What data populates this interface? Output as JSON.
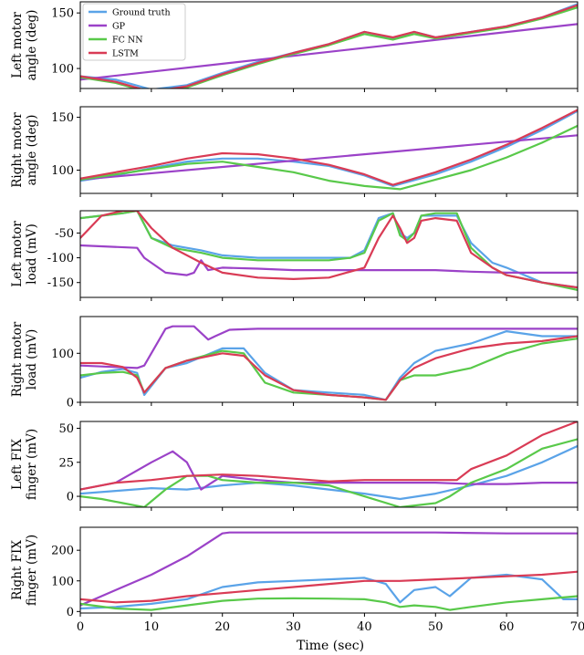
{
  "chart_data": [
    {
      "type": "line",
      "ylabel": [
        "Left motor",
        "angle (deg)"
      ],
      "ylim": [
        82,
        160
      ],
      "yticks": [
        100,
        150
      ],
      "series": [
        {
          "name": "Ground truth",
          "x": [
            0,
            5,
            10,
            15,
            20,
            25,
            30,
            35,
            40,
            44,
            47,
            50,
            55,
            60,
            65,
            70
          ],
          "y": [
            93,
            90,
            81,
            85,
            96,
            106,
            114,
            122,
            133,
            127,
            133,
            128,
            133,
            138,
            146,
            158
          ]
        },
        {
          "name": "GP",
          "x": [
            0,
            70
          ],
          "y": [
            90,
            140
          ]
        },
        {
          "name": "FC NN",
          "x": [
            0,
            5,
            10,
            15,
            20,
            25,
            30,
            35,
            40,
            44,
            47,
            50,
            55,
            60,
            65,
            70
          ],
          "y": [
            92,
            87,
            78,
            83,
            94,
            104,
            113,
            121,
            131,
            126,
            131,
            127,
            132,
            137,
            145,
            155
          ]
        },
        {
          "name": "LSTM",
          "x": [
            0,
            5,
            10,
            15,
            20,
            25,
            30,
            35,
            40,
            44,
            47,
            50,
            55,
            60,
            65,
            70
          ],
          "y": [
            93,
            88,
            79,
            84,
            95,
            105,
            114,
            122,
            133,
            128,
            133,
            128,
            133,
            138,
            146,
            157
          ]
        }
      ]
    },
    {
      "type": "line",
      "ylabel": [
        "Right motor",
        "angle (deg)"
      ],
      "ylim": [
        78,
        160
      ],
      "yticks": [
        100,
        150
      ],
      "series": [
        {
          "name": "Ground truth",
          "x": [
            0,
            5,
            10,
            15,
            20,
            25,
            30,
            35,
            40,
            44,
            50,
            55,
            60,
            65,
            70
          ],
          "y": [
            90,
            95,
            102,
            108,
            111,
            111,
            108,
            104,
            95,
            85,
            96,
            108,
            122,
            138,
            156
          ]
        },
        {
          "name": "GP",
          "x": [
            0,
            70
          ],
          "y": [
            91,
            133
          ]
        },
        {
          "name": "FC NN",
          "x": [
            0,
            5,
            10,
            15,
            20,
            25,
            30,
            35,
            40,
            45,
            50,
            55,
            60,
            65,
            70
          ],
          "y": [
            91,
            96,
            101,
            106,
            108,
            103,
            98,
            90,
            85,
            82,
            91,
            100,
            112,
            126,
            142
          ]
        },
        {
          "name": "LSTM",
          "x": [
            0,
            5,
            10,
            15,
            20,
            25,
            30,
            35,
            40,
            44,
            50,
            55,
            60,
            65,
            70
          ],
          "y": [
            92,
            98,
            104,
            111,
            116,
            115,
            111,
            105,
            96,
            86,
            98,
            110,
            124,
            140,
            157
          ]
        }
      ]
    },
    {
      "type": "line",
      "ylabel": [
        "Left motor",
        "load (mV)"
      ],
      "ylim": [
        -180,
        -5
      ],
      "yticks": [
        -50,
        -100,
        -150
      ],
      "series": [
        {
          "name": "Ground truth",
          "x": [
            0,
            3,
            6,
            8,
            10,
            13,
            17,
            20,
            25,
            30,
            35,
            38,
            40,
            42,
            44,
            45,
            46,
            47,
            48,
            50,
            53,
            55,
            58,
            60,
            65,
            70
          ],
          "y": [
            -20,
            -15,
            -10,
            -5,
            -60,
            -75,
            -85,
            -95,
            -100,
            -100,
            -100,
            -100,
            -85,
            -20,
            -10,
            -50,
            -60,
            -50,
            -15,
            -15,
            -15,
            -70,
            -110,
            -120,
            -150,
            -160
          ]
        },
        {
          "name": "GP",
          "x": [
            0,
            8,
            9,
            12,
            15,
            16,
            17,
            18,
            20,
            25,
            30,
            35,
            40,
            45,
            50,
            55,
            60,
            65,
            70
          ],
          "y": [
            -75,
            -80,
            -100,
            -130,
            -135,
            -130,
            -105,
            -125,
            -120,
            -122,
            -125,
            -125,
            -125,
            -125,
            -125,
            -128,
            -130,
            -130,
            -130
          ]
        },
        {
          "name": "FC NN",
          "x": [
            0,
            3,
            6,
            8,
            10,
            13,
            17,
            20,
            25,
            30,
            35,
            38,
            40,
            42,
            44,
            45,
            46,
            47,
            48,
            50,
            53,
            55,
            58,
            60,
            65,
            70
          ],
          "y": [
            -20,
            -15,
            -10,
            -5,
            -60,
            -80,
            -90,
            -100,
            -105,
            -105,
            -105,
            -100,
            -90,
            -25,
            -10,
            -55,
            -65,
            -50,
            -15,
            -10,
            -10,
            -80,
            -120,
            -135,
            -150,
            -165
          ]
        },
        {
          "name": "LSTM",
          "x": [
            0,
            3,
            6,
            8,
            10,
            13,
            17,
            20,
            25,
            30,
            35,
            40,
            42,
            44,
            45,
            46,
            47,
            48,
            50,
            53,
            55,
            58,
            60,
            65,
            70
          ],
          "y": [
            -60,
            -15,
            -5,
            -5,
            -40,
            -80,
            -110,
            -130,
            -140,
            -143,
            -140,
            -120,
            -60,
            -15,
            -40,
            -70,
            -60,
            -25,
            -20,
            -25,
            -90,
            -120,
            -135,
            -150,
            -160
          ]
        }
      ]
    },
    {
      "type": "line",
      "ylabel": [
        "Right motor",
        "load (mV)"
      ],
      "ylim": [
        0,
        175
      ],
      "yticks": [
        0,
        100
      ],
      "series": [
        {
          "name": "Ground truth",
          "x": [
            0,
            3,
            6,
            8,
            9,
            12,
            15,
            20,
            23,
            26,
            30,
            35,
            40,
            43,
            45,
            47,
            50,
            55,
            60,
            65,
            70
          ],
          "y": [
            50,
            62,
            68,
            60,
            15,
            70,
            80,
            110,
            110,
            60,
            25,
            20,
            15,
            5,
            50,
            80,
            105,
            120,
            145,
            135,
            135
          ]
        },
        {
          "name": "GP",
          "x": [
            0,
            8,
            9,
            12,
            13,
            16,
            18,
            19,
            21,
            25,
            30,
            40,
            50,
            60,
            70
          ],
          "y": [
            75,
            70,
            75,
            150,
            155,
            155,
            128,
            135,
            148,
            150,
            150,
            150,
            150,
            150,
            150
          ]
        },
        {
          "name": "FC NN",
          "x": [
            0,
            3,
            6,
            8,
            9,
            12,
            15,
            20,
            23,
            26,
            30,
            35,
            40,
            43,
            45,
            47,
            50,
            55,
            60,
            65,
            70
          ],
          "y": [
            55,
            60,
            62,
            55,
            20,
            70,
            85,
            105,
            100,
            40,
            20,
            15,
            10,
            5,
            45,
            55,
            55,
            70,
            100,
            120,
            130
          ]
        },
        {
          "name": "LSTM",
          "x": [
            0,
            3,
            6,
            8,
            9,
            12,
            15,
            20,
            23,
            26,
            30,
            35,
            40,
            43,
            45,
            47,
            50,
            55,
            60,
            65,
            70
          ],
          "y": [
            80,
            80,
            72,
            50,
            20,
            70,
            85,
            100,
            95,
            55,
            25,
            15,
            10,
            5,
            45,
            70,
            90,
            110,
            120,
            125,
            135
          ]
        }
      ]
    },
    {
      "type": "line",
      "ylabel": [
        "Left FIX",
        "finger (mV)"
      ],
      "ylim": [
        -8,
        55
      ],
      "yticks": [
        0,
        25,
        50
      ],
      "series": [
        {
          "name": "Ground truth",
          "x": [
            0,
            5,
            10,
            15,
            20,
            25,
            30,
            35,
            40,
            45,
            50,
            55,
            60,
            65,
            70
          ],
          "y": [
            2,
            4,
            6,
            5,
            8,
            10,
            8,
            5,
            2,
            -2,
            2,
            8,
            15,
            25,
            37
          ]
        },
        {
          "name": "GP",
          "x": [
            0,
            5,
            10,
            13,
            15,
            17,
            20,
            25,
            30,
            35,
            40,
            45,
            50,
            55,
            60,
            65,
            70
          ],
          "y": [
            5,
            10,
            25,
            33,
            25,
            5,
            15,
            12,
            10,
            10,
            10,
            10,
            10,
            9,
            9,
            10,
            10
          ]
        },
        {
          "name": "FC NN",
          "x": [
            0,
            3,
            6,
            9,
            12,
            15,
            18,
            20,
            25,
            30,
            35,
            40,
            45,
            50,
            52,
            55,
            60,
            65,
            70
          ],
          "y": [
            0,
            -2,
            -5,
            -8,
            5,
            15,
            15,
            12,
            10,
            10,
            8,
            0,
            -8,
            -5,
            0,
            10,
            20,
            35,
            42
          ]
        },
        {
          "name": "LSTM",
          "x": [
            0,
            5,
            10,
            15,
            20,
            25,
            30,
            35,
            40,
            45,
            50,
            53,
            55,
            60,
            65,
            70
          ],
          "y": [
            5,
            10,
            12,
            15,
            16,
            15,
            13,
            11,
            12,
            12,
            12,
            12,
            20,
            30,
            45,
            55
          ]
        }
      ]
    },
    {
      "type": "line",
      "ylabel": [
        "Right FIX",
        "finger (mV)"
      ],
      "ylim": [
        -5,
        275
      ],
      "yticks": [
        0,
        100,
        200
      ],
      "series": [
        {
          "name": "Ground truth",
          "x": [
            0,
            5,
            10,
            15,
            20,
            25,
            30,
            35,
            40,
            43,
            45,
            47,
            50,
            52,
            55,
            60,
            65,
            68,
            70
          ],
          "y": [
            10,
            15,
            25,
            40,
            80,
            95,
            100,
            105,
            110,
            90,
            30,
            70,
            80,
            50,
            110,
            120,
            105,
            40,
            40
          ]
        },
        {
          "name": "GP",
          "x": [
            0,
            5,
            10,
            15,
            20,
            21,
            30,
            40,
            50,
            60,
            70
          ],
          "y": [
            20,
            70,
            120,
            180,
            255,
            258,
            258,
            258,
            258,
            255,
            255
          ]
        },
        {
          "name": "FC NN",
          "x": [
            0,
            5,
            10,
            15,
            20,
            25,
            30,
            35,
            40,
            43,
            45,
            47,
            50,
            52,
            55,
            60,
            65,
            70
          ],
          "y": [
            25,
            10,
            5,
            20,
            35,
            42,
            43,
            42,
            40,
            30,
            15,
            20,
            15,
            5,
            15,
            30,
            40,
            50
          ]
        },
        {
          "name": "LSTM",
          "x": [
            0,
            5,
            10,
            15,
            20,
            25,
            30,
            35,
            40,
            45,
            50,
            55,
            60,
            65,
            70
          ],
          "y": [
            40,
            30,
            35,
            50,
            60,
            70,
            80,
            90,
            100,
            100,
            105,
            110,
            115,
            120,
            130
          ]
        }
      ]
    }
  ],
  "xaxis": {
    "label": "Time (sec)",
    "xlim": [
      0,
      70
    ],
    "ticks": [
      0,
      10,
      20,
      30,
      40,
      50,
      60,
      70
    ]
  },
  "colors": {
    "Ground truth": "#5aa3e8",
    "GP": "#9b42c8",
    "FC NN": "#59c94a",
    "LSTM": "#d93b55"
  }
}
